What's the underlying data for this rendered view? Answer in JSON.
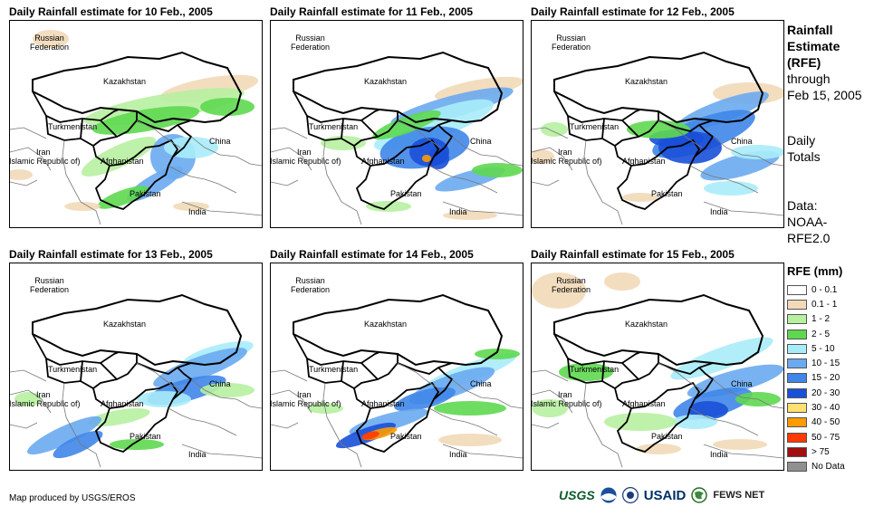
{
  "panels": [
    {
      "title": "Daily Rainfall estimate for 10 Feb., 2005",
      "rain": "p10"
    },
    {
      "title": "Daily Rainfall estimate for 11 Feb., 2005",
      "rain": "p11"
    },
    {
      "title": "Daily Rainfall estimate for 12 Feb., 2005",
      "rain": "p12"
    },
    {
      "title": "Daily Rainfall estimate for 13 Feb., 2005",
      "rain": "p13"
    },
    {
      "title": "Daily Rainfall estimate for 14 Feb., 2005",
      "rain": "p14"
    },
    {
      "title": "Daily Rainfall estimate for 15 Feb., 2005",
      "rain": "p15"
    }
  ],
  "countries": {
    "russia": "Russian\nFederation",
    "kazakhstan": "Kazakhstan",
    "turkmenistan": "Turkmenistan",
    "iran": "Iran\n(Islamic Republic of)",
    "afghanistan": "Afghanistan",
    "pakistan": "Pakistan",
    "china": "China",
    "india": "India"
  },
  "sidebar": {
    "title_line1": "Rainfall",
    "title_line2": "Estimate",
    "title_line3": "(RFE)",
    "through": "through",
    "date": "Feb 15, 2005",
    "daily1": "Daily",
    "daily2": "Totals",
    "data1": "Data:",
    "data2": "NOAA-",
    "data3": "RFE2.0"
  },
  "legend": {
    "title": "RFE (mm)",
    "items": [
      {
        "label": "0 - 0.1",
        "color": "#ffffff"
      },
      {
        "label": "0.1 - 1",
        "color": "#f2d9b8"
      },
      {
        "label": "1 - 2",
        "color": "#b7f0a0"
      },
      {
        "label": "2 - 5",
        "color": "#5ed850"
      },
      {
        "label": "5 - 10",
        "color": "#a8ecfa"
      },
      {
        "label": "10 - 15",
        "color": "#6aaaf0"
      },
      {
        "label": "15 - 20",
        "color": "#3f86e8"
      },
      {
        "label": "20 - 30",
        "color": "#1a50d8"
      },
      {
        "label": "30 - 40",
        "color": "#ffe070"
      },
      {
        "label": "40 - 50",
        "color": "#ff9a00"
      },
      {
        "label": "50 - 75",
        "color": "#ff3a00"
      },
      {
        "label": "> 75",
        "color": "#a01010"
      },
      {
        "label": "No Data",
        "color": "#909090"
      }
    ]
  },
  "credit": "Map produced by USGS/EROS",
  "logos": {
    "usgs": "USGS",
    "usaid": "USAID",
    "fewsnet": "FEWS NET"
  }
}
